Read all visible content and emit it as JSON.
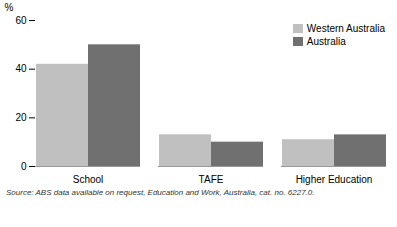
{
  "chart_data": {
    "type": "bar",
    "categories": [
      "School",
      "TAFE",
      "Higher Education"
    ],
    "series": [
      {
        "name": "Western Australia",
        "color": "#c0c0c0",
        "values": [
          42,
          13,
          11
        ]
      },
      {
        "name": "Australia",
        "color": "#707070",
        "values": [
          50,
          10,
          13
        ]
      }
    ],
    "ylabel": "%",
    "ylim": [
      0,
      60
    ],
    "yticks": [
      0,
      20,
      40,
      60
    ],
    "grid": false,
    "legend": "upper right",
    "annotations": [
      "Source: ABS data available on request, Education and Work, Australia, cat. no. 6227.0."
    ]
  }
}
